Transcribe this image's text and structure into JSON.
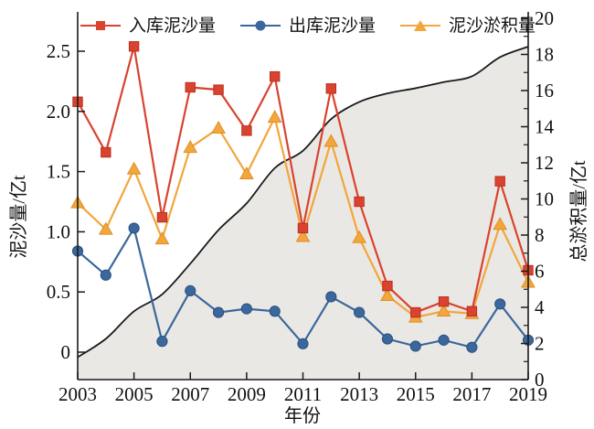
{
  "chart_data": {
    "type": "line",
    "title": "",
    "xlabel": "年份",
    "x_years": [
      2003,
      2004,
      2005,
      2006,
      2007,
      2008,
      2009,
      2010,
      2011,
      2012,
      2013,
      2014,
      2015,
      2016,
      2017,
      2018,
      2019
    ],
    "x_tick_labels": [
      "2003",
      "2005",
      "2007",
      "2009",
      "2011",
      "2013",
      "2015",
      "2017",
      "2019"
    ],
    "left_axis": {
      "label": "泥沙量/亿t",
      "tick_labels": [
        "0",
        "0.5",
        "1.0",
        "1.5",
        "2.0",
        "2.5"
      ],
      "tick_values": [
        0,
        0.5,
        1.0,
        1.5,
        2.0,
        2.5
      ],
      "range": [
        0,
        2.5
      ]
    },
    "right_axis": {
      "label": "总淤积量/亿t",
      "tick_labels": [
        "0",
        "2",
        "4",
        "6",
        "8",
        "10",
        "12",
        "14",
        "16",
        "18",
        "20"
      ],
      "tick_values": [
        0,
        2,
        4,
        6,
        8,
        10,
        12,
        14,
        16,
        18,
        20
      ],
      "minor_tick_step": 1,
      "range": [
        0,
        20
      ]
    },
    "legend_position": "top",
    "grid": false,
    "series": [
      {
        "id": "inflow",
        "name": "入库泥沙量",
        "marker": "square",
        "color": "#d9432f",
        "edge": "#b8311f",
        "values": [
          2.08,
          1.66,
          2.54,
          1.12,
          2.2,
          2.18,
          1.84,
          2.29,
          1.03,
          2.19,
          1.25,
          0.55,
          0.33,
          0.42,
          0.34,
          1.42,
          0.68
        ]
      },
      {
        "id": "outflow",
        "name": "出库泥沙量",
        "marker": "circle",
        "color": "#3a679c",
        "edge": "#2b5080",
        "values": [
          0.84,
          0.64,
          1.03,
          0.09,
          0.51,
          0.33,
          0.36,
          0.34,
          0.07,
          0.46,
          0.33,
          0.11,
          0.05,
          0.1,
          0.04,
          0.4,
          0.1
        ]
      },
      {
        "id": "deposition",
        "name": "泥沙淤积量",
        "marker": "triangle",
        "color": "#f2a63c",
        "edge": "#dd8f24",
        "values": [
          1.24,
          1.02,
          1.52,
          0.94,
          1.7,
          1.86,
          1.48,
          1.95,
          0.96,
          1.75,
          0.95,
          0.47,
          0.29,
          0.34,
          0.32,
          1.06,
          0.58
        ]
      }
    ],
    "cumulative": {
      "axis": "right",
      "line_color": "#1a1a1a",
      "fill_color": "#eae8e4",
      "values": [
        1.24,
        2.26,
        3.78,
        4.72,
        6.42,
        8.28,
        9.76,
        11.71,
        12.67,
        14.42,
        15.37,
        15.84,
        16.13,
        16.47,
        16.79,
        17.85,
        18.43
      ]
    }
  }
}
